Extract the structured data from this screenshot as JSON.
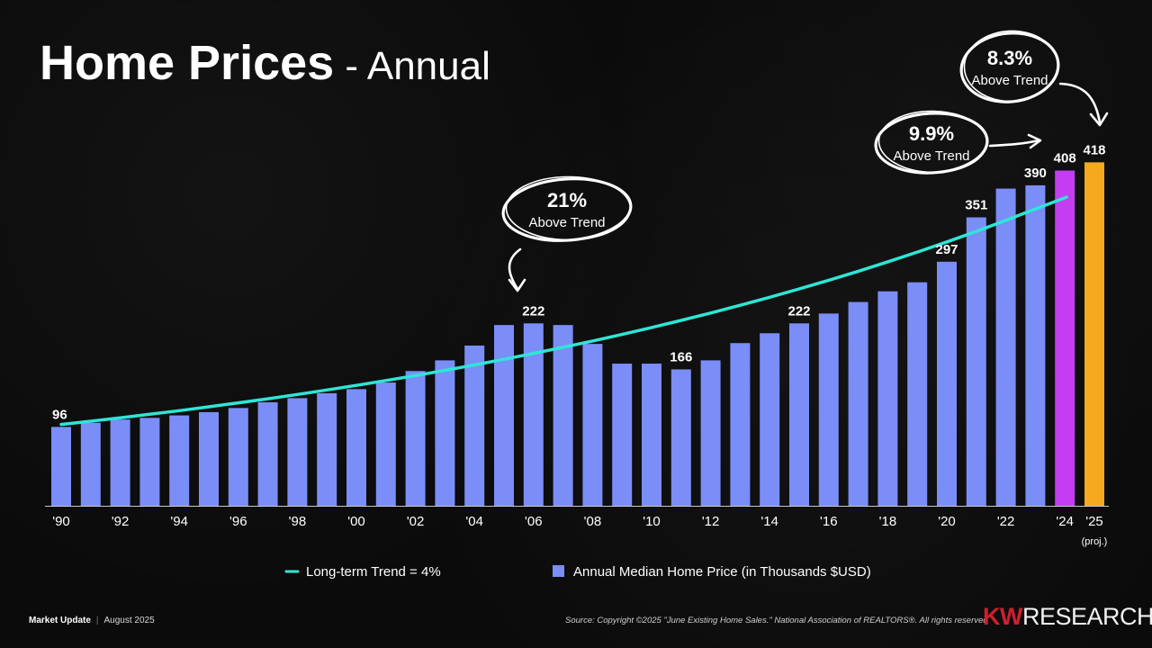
{
  "title": {
    "main": "Home Prices",
    "separator": " - ",
    "sub": "Annual"
  },
  "chart_data": {
    "type": "bar",
    "categories": [
      "'90",
      "'91",
      "'92",
      "'93",
      "'94",
      "'95",
      "'96",
      "'97",
      "'98",
      "'99",
      "'00",
      "'01",
      "'02",
      "'03",
      "'04",
      "'05",
      "'06",
      "'07",
      "'08",
      "'09",
      "'10",
      "'11",
      "'12",
      "'13",
      "'14",
      "'15",
      "'16",
      "'17",
      "'18",
      "'19",
      "'20",
      "'21",
      "'22",
      "'23",
      "'24",
      "'25"
    ],
    "tick_labels": [
      "'90",
      "",
      "'92",
      "",
      "'94",
      "",
      "'96",
      "",
      "'98",
      "",
      "'00",
      "",
      "'02",
      "",
      "'04",
      "",
      "'06",
      "",
      "'08",
      "",
      "'10",
      "",
      "'12",
      "",
      "'14",
      "",
      "'16",
      "",
      "'18",
      "",
      "'20",
      "",
      "'22",
      "",
      "'24",
      "'25"
    ],
    "tick_sub_label": {
      "category": "'25",
      "text": "(proj.)"
    },
    "series": [
      {
        "name": "Annual Median Home Price (in Thousands $USD)",
        "values": [
          96,
          101,
          105,
          107,
          110,
          114,
          119,
          126,
          131,
          137,
          142,
          150,
          164,
          177,
          195,
          220,
          222,
          220,
          197,
          173,
          173,
          166,
          177,
          198,
          210,
          222,
          234,
          248,
          261,
          272,
          297,
          351,
          386,
          390,
          408,
          418
        ]
      },
      {
        "name": "Long-term Trend = 4%",
        "type": "line",
        "start": 99,
        "growth_rate": 0.04
      }
    ],
    "data_labels": [
      {
        "category": "'90",
        "text": "96"
      },
      {
        "category": "'06",
        "text": "222"
      },
      {
        "category": "'11",
        "text": "166"
      },
      {
        "category": "'15",
        "text": "222"
      },
      {
        "category": "'20",
        "text": "297"
      },
      {
        "category": "'21",
        "text": "351"
      },
      {
        "category": "'23",
        "text": "390"
      },
      {
        "category": "'24",
        "text": "408"
      },
      {
        "category": "'25",
        "text": "418"
      }
    ],
    "annotations": [
      {
        "category": "'06",
        "value": "21%",
        "label": "Above Trend"
      },
      {
        "category": "'24",
        "value": "9.9%",
        "label": "Above Trend"
      },
      {
        "category": "'25",
        "value": "8.3%",
        "label": "Above Trend"
      }
    ],
    "ylim": [
      0,
      430
    ],
    "legend_position": "bottom",
    "colors": {
      "bar": "#7b8df7",
      "bar_2024": "#c23ef0",
      "bar_2025_projected": "#f5a91e",
      "trend": "#2ee6d6"
    }
  },
  "legend": {
    "trend": "Long-term Trend = 4%",
    "bars": "Annual Median Home Price (in Thousands $USD)"
  },
  "footer": {
    "section": "Market Update",
    "separator": "|",
    "date": "August 2025",
    "source": "Source: Copyright ©2025 \"June Existing Home Sales.\" National Association of REALTORS®. All rights reserved"
  },
  "logo": {
    "kw": "KW",
    "research": "RESEARCH"
  }
}
